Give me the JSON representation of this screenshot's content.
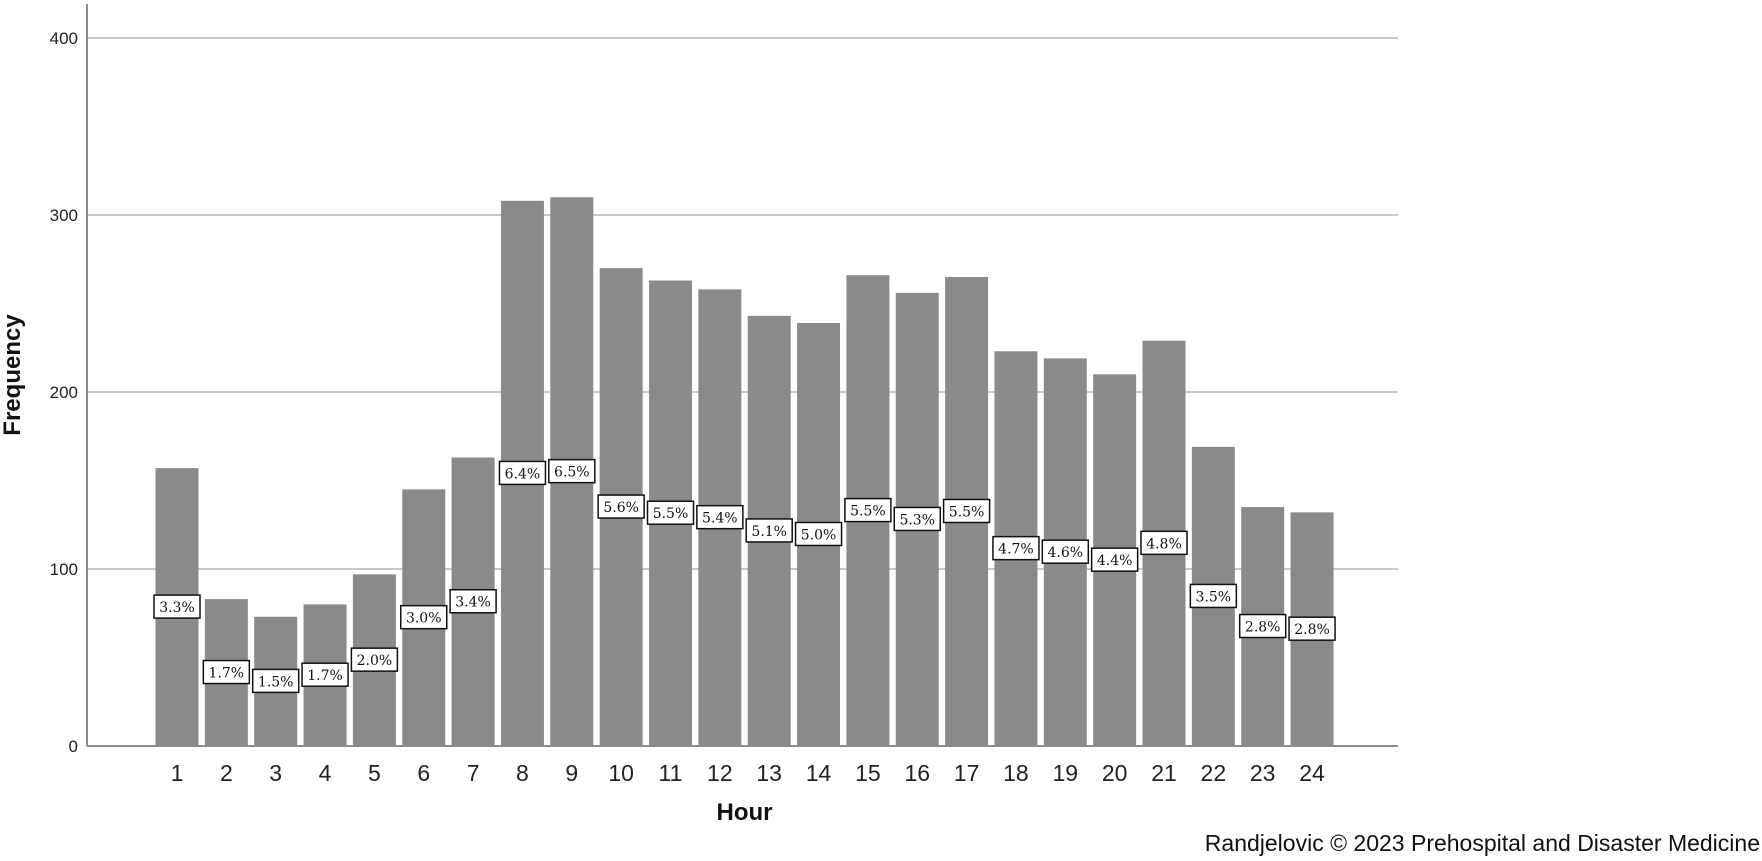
{
  "chart_data": {
    "type": "bar",
    "title": "",
    "xlabel": "Hour",
    "ylabel": "Frequency",
    "ylim": [
      0,
      400
    ],
    "yticks": [
      0,
      100,
      200,
      300,
      400
    ],
    "grid": true,
    "bar_color": "#8a8a8a",
    "categories": [
      "1",
      "2",
      "3",
      "4",
      "5",
      "6",
      "7",
      "8",
      "9",
      "10",
      "11",
      "12",
      "13",
      "14",
      "15",
      "16",
      "17",
      "18",
      "19",
      "20",
      "21",
      "22",
      "23",
      "24"
    ],
    "values": [
      157,
      83,
      73,
      80,
      97,
      145,
      163,
      308,
      310,
      270,
      263,
      258,
      243,
      239,
      266,
      256,
      265,
      223,
      219,
      210,
      229,
      169,
      135,
      132
    ],
    "data_labels": [
      "3.3%",
      "1.7%",
      "1.5%",
      "1.7%",
      "2.0%",
      "3.0%",
      "3.4%",
      "6.4%",
      "6.5%",
      "5.6%",
      "5.5%",
      "5.4%",
      "5.1%",
      "5.0%",
      "5.5%",
      "5.3%",
      "5.5%",
      "4.7%",
      "4.6%",
      "4.4%",
      "4.8%",
      "3.5%",
      "2.8%",
      "2.8%"
    ]
  },
  "credit": "Randjelovic © 2023 Prehospital and Disaster Medicine"
}
